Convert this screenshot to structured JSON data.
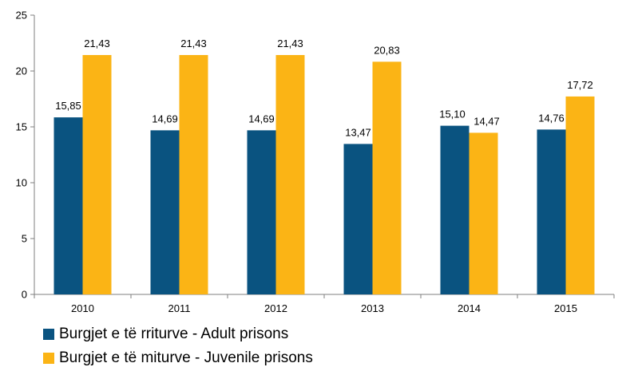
{
  "chart_data": {
    "type": "bar",
    "categories": [
      "2010",
      "2011",
      "2012",
      "2013",
      "2014",
      "2015"
    ],
    "series": [
      {
        "name": "Burgjet e të rriturve - Adult prisons",
        "color": "#0a5380",
        "values": [
          15.85,
          14.69,
          14.69,
          13.47,
          15.1,
          14.76
        ],
        "labels": [
          "15,85",
          "14,69",
          "14,69",
          "13,47",
          "15,10",
          "14,76"
        ]
      },
      {
        "name": "Burgjet e të miturve - Juvenile prisons",
        "color": "#fbb415",
        "values": [
          21.43,
          21.43,
          21.43,
          20.83,
          14.47,
          17.72
        ],
        "labels": [
          "21,43",
          "21,43",
          "21,43",
          "20,83",
          "14,47",
          "17,72"
        ]
      }
    ],
    "yticks": [
      "0",
      "5",
      "10",
      "15",
      "20",
      "25"
    ],
    "ylim": [
      0,
      25
    ],
    "grid": false,
    "legend_position": "bottom-left"
  }
}
